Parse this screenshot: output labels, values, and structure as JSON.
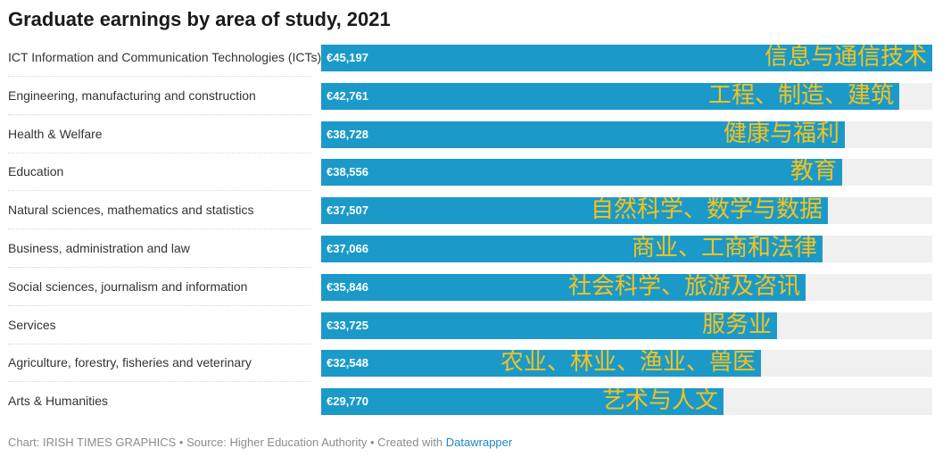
{
  "title": "Graduate earnings by area of study, 2021",
  "colors": {
    "bar": "#1b9ac9",
    "bar_background": "#f0f0f0",
    "annotation": "#f7c21a"
  },
  "chart_data": {
    "type": "bar",
    "orientation": "horizontal",
    "title": "Graduate earnings by area of study, 2021",
    "xlim": [
      0,
      45197
    ],
    "categories": [
      "ICT Information and Communication Technologies (ICTs)",
      "Engineering, manufacturing and construction",
      "Health & Welfare",
      "Education",
      "Natural sciences, mathematics and statistics",
      "Business, administration and law",
      "Social sciences, journalism and information",
      "Services",
      "Agriculture, forestry, fisheries and veterinary",
      "Arts & Humanities"
    ],
    "values": [
      45197,
      42761,
      38728,
      38556,
      37507,
      37066,
      35846,
      33725,
      32548,
      29770
    ],
    "value_labels": [
      "€45,197",
      "€42,761",
      "€38,728",
      "€38,556",
      "€37,507",
      "€37,066",
      "€35,846",
      "€33,725",
      "€32,548",
      "€29,770"
    ],
    "annotations": [
      "信息与通信技术",
      "工程、制造、建筑",
      "健康与福利",
      "教育",
      "自然科学、数学与数据",
      "商业、工商和法律",
      "社会科学、旅游及咨讯",
      "服务业",
      "农业、林业、渔业、兽医",
      "艺术与人文"
    ]
  },
  "footer": {
    "text": "Chart: IRISH TIMES GRAPHICS • Source: Higher Education Authority • Created with ",
    "link": "Datawrapper"
  }
}
